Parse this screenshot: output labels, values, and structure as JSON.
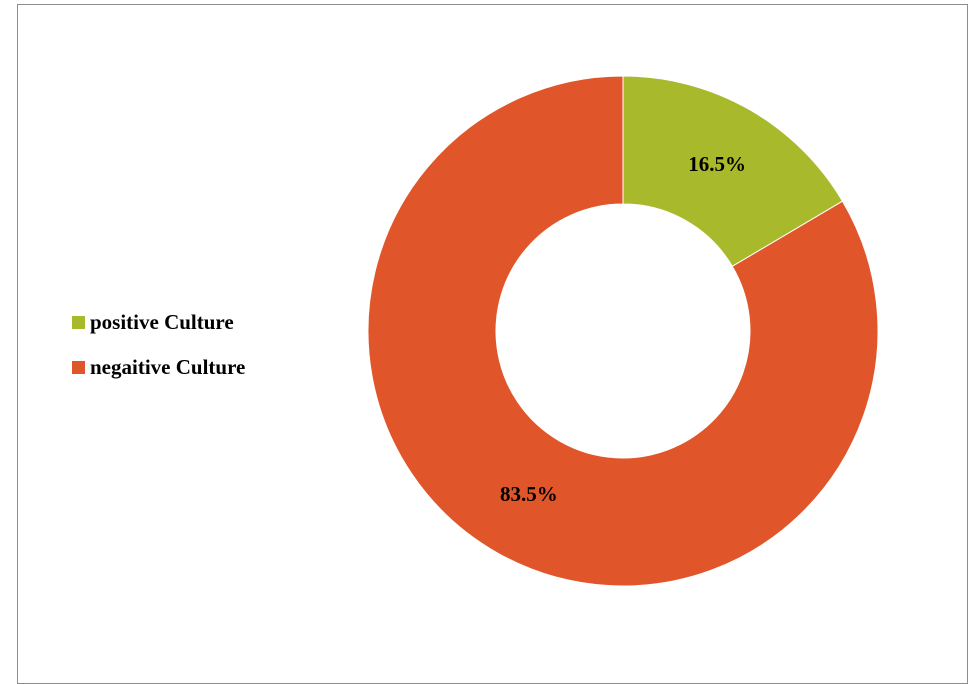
{
  "chart_data": {
    "type": "pie",
    "variant": "doughnut",
    "categories": [
      "positive Culture",
      "negaitive Culture"
    ],
    "values": [
      16.5,
      83.5
    ],
    "data_labels": [
      "16.5%",
      "83.5%"
    ],
    "colors": [
      "#A8BA2C",
      "#E05529"
    ],
    "legend": {
      "position": "left",
      "entries": [
        {
          "label": "positive Culture",
          "color": "#A8BA2C"
        },
        {
          "label": "negaitive Culture",
          "color": "#E05529"
        }
      ]
    }
  }
}
